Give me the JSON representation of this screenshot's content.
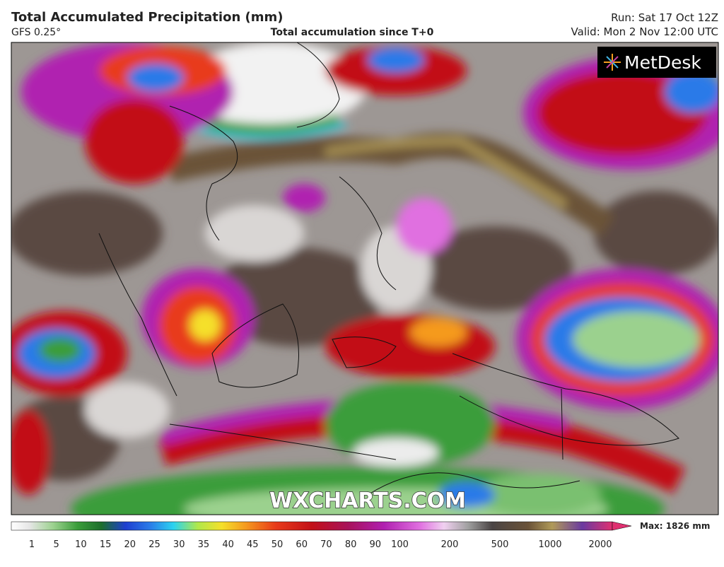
{
  "header": {
    "title": "Total Accumulated Precipitation (mm)",
    "model": "GFS 0.25°",
    "subtitle": "Total accumulation since T+0",
    "run": "Run: Sat 17 Oct 12Z",
    "valid": "Valid: Mon 2 Nov 12:00 UTC"
  },
  "logo": "MetDesk",
  "watermark": "WXCHARTS.COM",
  "colorbar": {
    "labels": [
      1,
      5,
      10,
      15,
      20,
      25,
      30,
      35,
      40,
      45,
      50,
      60,
      70,
      80,
      90,
      100,
      200,
      500,
      1000,
      2000
    ],
    "max_label": "Max: 1826 mm"
  }
}
